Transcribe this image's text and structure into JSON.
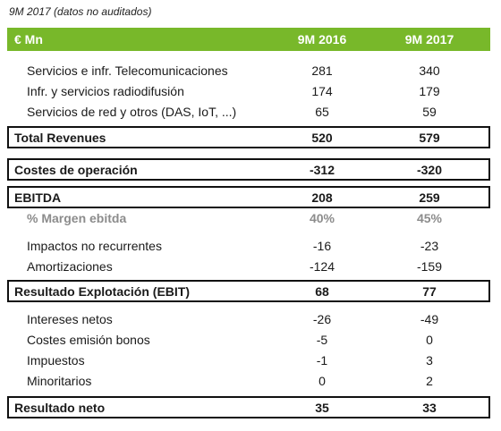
{
  "caption": "9M 2017 (datos no auditados)",
  "header": {
    "unit": "€ Mn",
    "col1": "9M 2016",
    "col2": "9M 2017"
  },
  "rows": [
    {
      "label": "Servicios e infr. Telecomunicaciones",
      "v2016": "281",
      "v2017": "340"
    },
    {
      "label": "Infr. y servicios radiodifusión",
      "v2016": "174",
      "v2017": "179"
    },
    {
      "label": "Servicios de red y otros (DAS, IoT, ...)",
      "v2016": "65",
      "v2017": "59"
    },
    {
      "label": "Total Revenues",
      "v2016": "520",
      "v2017": "579"
    },
    {
      "label": "Costes de operación",
      "v2016": "-312",
      "v2017": "-320"
    },
    {
      "label": "EBITDA",
      "v2016": "208",
      "v2017": "259"
    },
    {
      "label": "% Margen ebitda",
      "v2016": "40%",
      "v2017": "45%"
    },
    {
      "label": "Impactos no recurrentes",
      "v2016": "-16",
      "v2017": "-23"
    },
    {
      "label": "Amortizaciones",
      "v2016": "-124",
      "v2017": "-159"
    },
    {
      "label": "Resultado Explotación (EBIT)",
      "v2016": "68",
      "v2017": "77"
    },
    {
      "label": "Intereses netos",
      "v2016": "-26",
      "v2017": "-49"
    },
    {
      "label": "Costes emisión bonos",
      "v2016": "-5",
      "v2017": "0"
    },
    {
      "label": "Impuestos",
      "v2016": "-1",
      "v2017": "3"
    },
    {
      "label": "Minoritarios",
      "v2016": "0",
      "v2017": "2"
    },
    {
      "label": "Resultado neto",
      "v2016": "35",
      "v2017": "33"
    }
  ]
}
